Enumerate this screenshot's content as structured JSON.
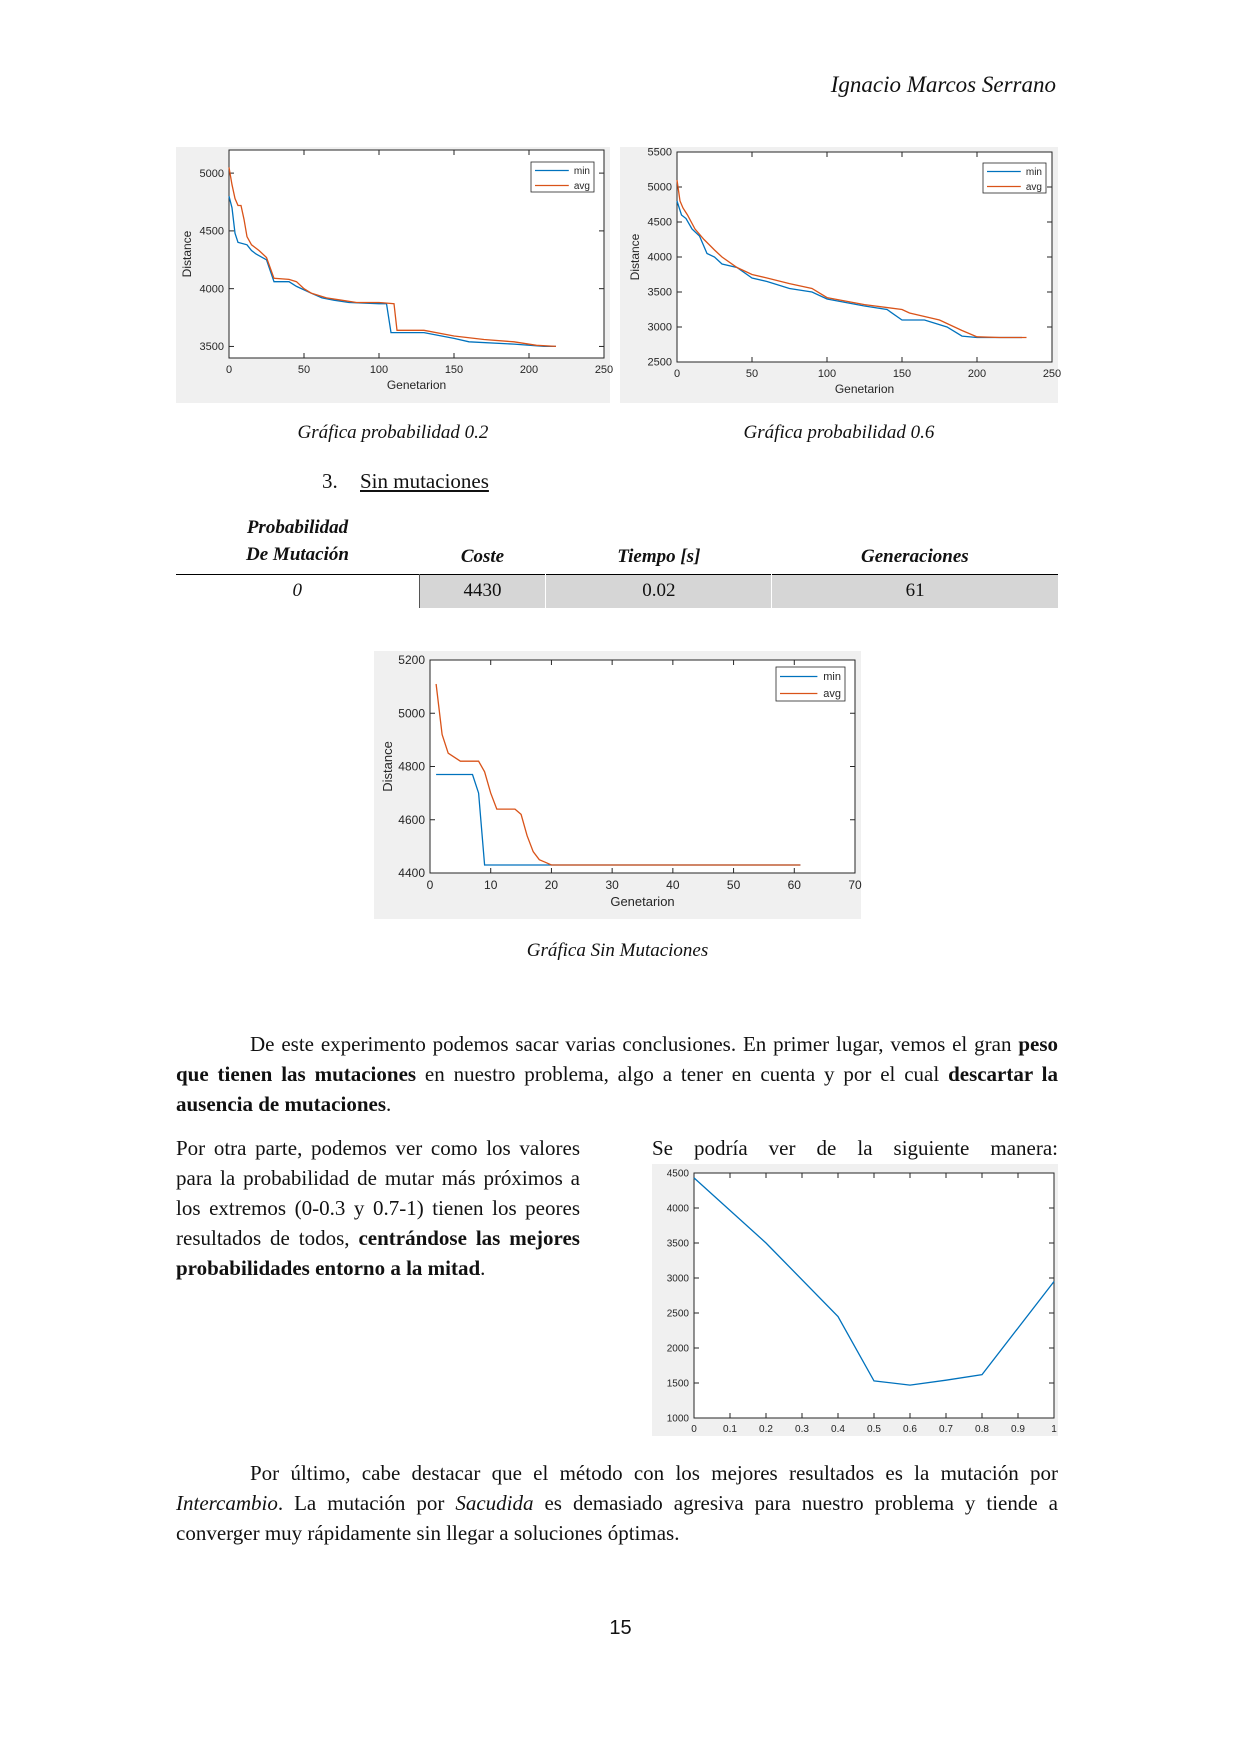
{
  "header": {
    "author": "Ignacio Marcos Serrano"
  },
  "colors": {
    "min": "#0072bd",
    "avg": "#d95319",
    "figure_bg": "#f0f0f0",
    "table_shade": "#d6d6d6"
  },
  "figures": {
    "prob02_caption": "Gráfica probabilidad 0.2",
    "prob06_caption": "Gráfica probabilidad 0.6",
    "nomut_caption": "Gráfica Sin Mutaciones"
  },
  "section": {
    "number": "3.",
    "title": "Sin mutaciones"
  },
  "table": {
    "headers": {
      "col1_line1": "Probabilidad",
      "col1_line2": "De Mutación",
      "col2": "Coste",
      "col3": "Tiempo [s]",
      "col4": "Generaciones"
    },
    "rows": [
      {
        "prob": "0",
        "cost": "4430",
        "time": "0.02",
        "generations": "61"
      }
    ]
  },
  "paragraphs": {
    "p1_a": "De este experimento podemos sacar varias conclusiones. En primer lugar, vemos el gran ",
    "p1_b": "peso que tienen las mutaciones",
    "p1_c": " en nuestro problema, algo a tener en cuenta y por el cual ",
    "p1_d": "descartar la ausencia de mutaciones",
    "p1_e": ".",
    "p2_a": "Por otra parte, podemos ver como los valores para la probabilidad de mutar más próximos a los extremos (0-0.3 y 0.7-1) tienen los peores resultados de todos, ",
    "p2_b": "centrándose las mejores probabilidades entorno a la mitad",
    "p2_c": ".",
    "p3": "Se podría ver de la siguiente manera:",
    "p4_a": "Por último, cabe destacar que el método con los mejores resultados es la mutación por ",
    "p4_b": "Intercambio",
    "p4_c": ". La mutación por ",
    "p4_d": "Sacudida",
    "p4_e": " es demasiado agresiva para nuestro problema y tiende a converger muy rápidamente sin llegar a soluciones óptimas."
  },
  "page_number": "15",
  "chart_data": [
    {
      "type": "line",
      "xlabel": "Genetarion",
      "ylabel": "Distance",
      "xlim": [
        0,
        250
      ],
      "ylim": [
        3400,
        5200
      ],
      "xticks": [
        "0",
        "50",
        "100",
        "150",
        "200",
        "250"
      ],
      "yticks": [
        "3500",
        "4000",
        "4500",
        "5000"
      ],
      "legend": "top-right",
      "series": [
        {
          "name": "min",
          "x": [
            0,
            2,
            4,
            6,
            12,
            15,
            18,
            25,
            30,
            40,
            45,
            55,
            62,
            70,
            80,
            100,
            105,
            108,
            130,
            150,
            160,
            190,
            210,
            218
          ],
          "y": [
            4800,
            4700,
            4480,
            4400,
            4380,
            4330,
            4300,
            4250,
            4060,
            4060,
            4020,
            3960,
            3920,
            3900,
            3880,
            3870,
            3870,
            3620,
            3620,
            3570,
            3540,
            3520,
            3500,
            3500
          ]
        },
        {
          "name": "avg",
          "x": [
            0,
            2,
            4,
            6,
            8,
            10,
            12,
            15,
            20,
            25,
            30,
            40,
            45,
            50,
            55,
            65,
            75,
            85,
            100,
            110,
            112,
            130,
            150,
            170,
            190,
            205,
            218
          ],
          "y": [
            5050,
            4900,
            4780,
            4720,
            4720,
            4600,
            4450,
            4380,
            4330,
            4270,
            4090,
            4080,
            4060,
            4000,
            3960,
            3920,
            3900,
            3880,
            3880,
            3870,
            3640,
            3640,
            3590,
            3560,
            3540,
            3510,
            3500
          ]
        }
      ]
    },
    {
      "type": "line",
      "xlabel": "Genetarion",
      "ylabel": "Distance",
      "xlim": [
        0,
        250
      ],
      "ylim": [
        2500,
        5500
      ],
      "xticks": [
        "0",
        "50",
        "100",
        "150",
        "200",
        "250"
      ],
      "yticks": [
        "2500",
        "3000",
        "3500",
        "4000",
        "4500",
        "5000",
        "5500"
      ],
      "legend": "top-right",
      "series": [
        {
          "name": "min",
          "x": [
            0,
            3,
            6,
            10,
            15,
            20,
            25,
            30,
            40,
            50,
            60,
            75,
            90,
            100,
            125,
            140,
            150,
            165,
            180,
            190,
            200,
            210,
            230
          ],
          "y": [
            4800,
            4600,
            4550,
            4400,
            4300,
            4050,
            4000,
            3900,
            3850,
            3700,
            3650,
            3550,
            3500,
            3400,
            3300,
            3250,
            3100,
            3100,
            3000,
            2870,
            2850,
            2850,
            2850
          ]
        },
        {
          "name": "avg",
          "x": [
            0,
            2,
            4,
            7,
            12,
            18,
            25,
            30,
            40,
            50,
            60,
            75,
            90,
            100,
            125,
            150,
            155,
            175,
            190,
            200,
            215,
            233
          ],
          "y": [
            5100,
            4800,
            4700,
            4600,
            4400,
            4250,
            4100,
            4000,
            3850,
            3750,
            3700,
            3620,
            3550,
            3420,
            3320,
            3250,
            3200,
            3100,
            2950,
            2860,
            2850,
            2850
          ]
        }
      ]
    },
    {
      "type": "line",
      "xlabel": "Genetarion",
      "ylabel": "Distance",
      "xlim": [
        0,
        70
      ],
      "ylim": [
        4400,
        5200
      ],
      "xticks": [
        "0",
        "10",
        "20",
        "30",
        "40",
        "50",
        "60",
        "70"
      ],
      "yticks": [
        "4400",
        "4600",
        "4800",
        "5000",
        "5200"
      ],
      "legend": "top-right",
      "series": [
        {
          "name": "min",
          "x": [
            1,
            2,
            7,
            8,
            9,
            10,
            20,
            40,
            61
          ],
          "y": [
            4770,
            4770,
            4770,
            4700,
            4430,
            4430,
            4430,
            4430,
            4430
          ]
        },
        {
          "name": "avg",
          "x": [
            1,
            2,
            3,
            5,
            8,
            9,
            10,
            11,
            14,
            15,
            16,
            17,
            18,
            19,
            20,
            30,
            61
          ],
          "y": [
            5110,
            4920,
            4850,
            4820,
            4820,
            4780,
            4700,
            4640,
            4640,
            4620,
            4540,
            4480,
            4450,
            4440,
            4430,
            4430,
            4430
          ]
        }
      ]
    },
    {
      "type": "line",
      "xlim": [
        0,
        1
      ],
      "ylim": [
        1000,
        4500
      ],
      "xticks": [
        "0",
        "0.1",
        "0.2",
        "0.3",
        "0.4",
        "0.5",
        "0.6",
        "0.7",
        "0.8",
        "0.9",
        "1"
      ],
      "yticks": [
        "1000",
        "1500",
        "2000",
        "2500",
        "3000",
        "3500",
        "4000",
        "4500"
      ],
      "series": [
        {
          "x": [
            0,
            0.2,
            0.4,
            0.5,
            0.6,
            0.7,
            0.8,
            1.0
          ],
          "y": [
            4430,
            3500,
            2450,
            1530,
            1470,
            1540,
            1620,
            2950
          ]
        }
      ]
    }
  ]
}
